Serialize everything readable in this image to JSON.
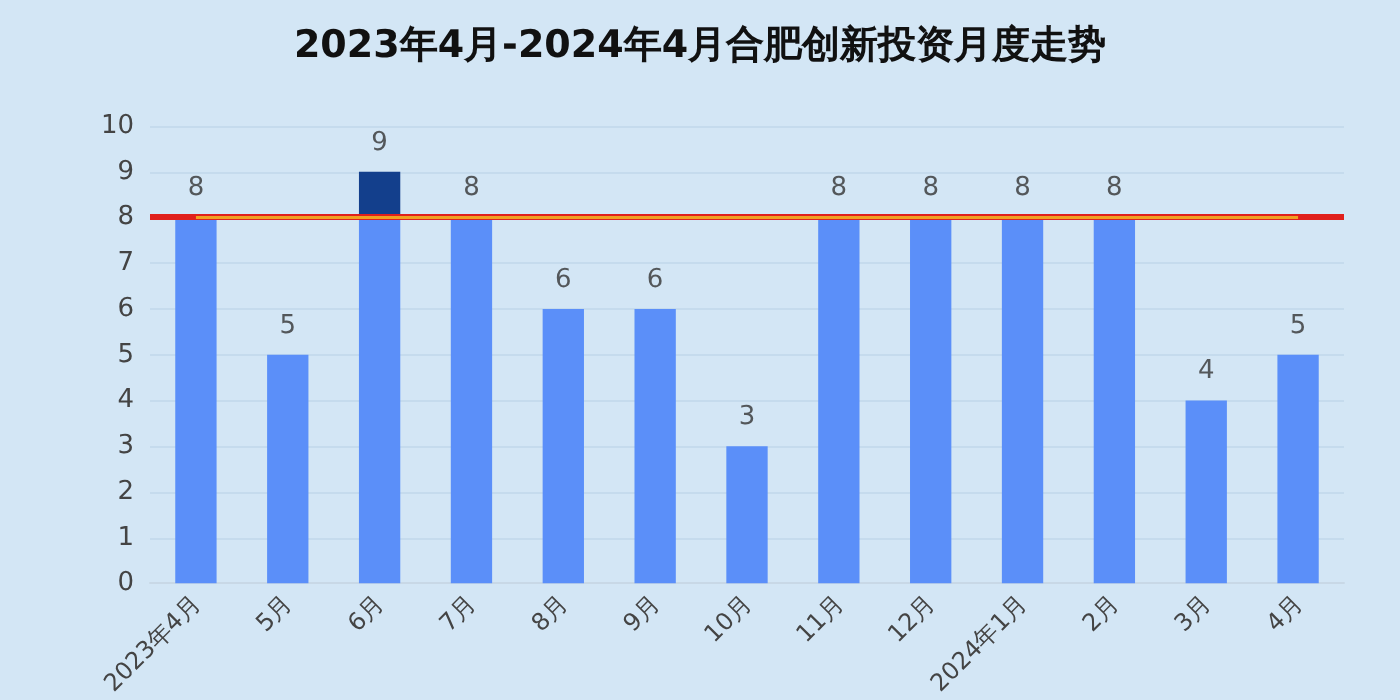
{
  "chart_data": {
    "type": "bar",
    "title": "2023年4月-2024年4月合肥创新投资月度走势",
    "categories": [
      "2023年4月",
      "5月",
      "6月",
      "7月",
      "8月",
      "9月",
      "10月",
      "11月",
      "12月",
      "2024年1月",
      "2月",
      "3月",
      "4月"
    ],
    "stacked": true,
    "series": [
      {
        "color": "#5b8ff9",
        "values": [
          8,
          5,
          8,
          8,
          6,
          6,
          3,
          8,
          8,
          8,
          8,
          4,
          5
        ]
      },
      {
        "color": "#133f8c",
        "values": [
          null,
          null,
          1,
          null,
          null,
          null,
          null,
          null,
          null,
          null,
          null,
          null,
          null
        ]
      },
      {
        "type": "line",
        "color": "#f0a020",
        "marker": "none",
        "values": [
          8,
          8,
          8,
          8,
          8,
          8,
          8,
          8,
          8,
          8,
          8,
          8,
          8
        ]
      }
    ],
    "totals": [
      "8",
      "5",
      "9",
      "8",
      "6",
      "6",
      "3",
      "8",
      "8",
      "8",
      "8",
      "4",
      "5"
    ],
    "ref_lines": [
      {
        "axis": "y",
        "value": 8,
        "color": "#e0201c"
      }
    ],
    "ylim": [
      0,
      10
    ],
    "yticks": [
      0,
      1,
      2,
      3,
      4,
      5,
      6,
      7,
      8,
      9,
      10
    ],
    "grid": "y"
  }
}
